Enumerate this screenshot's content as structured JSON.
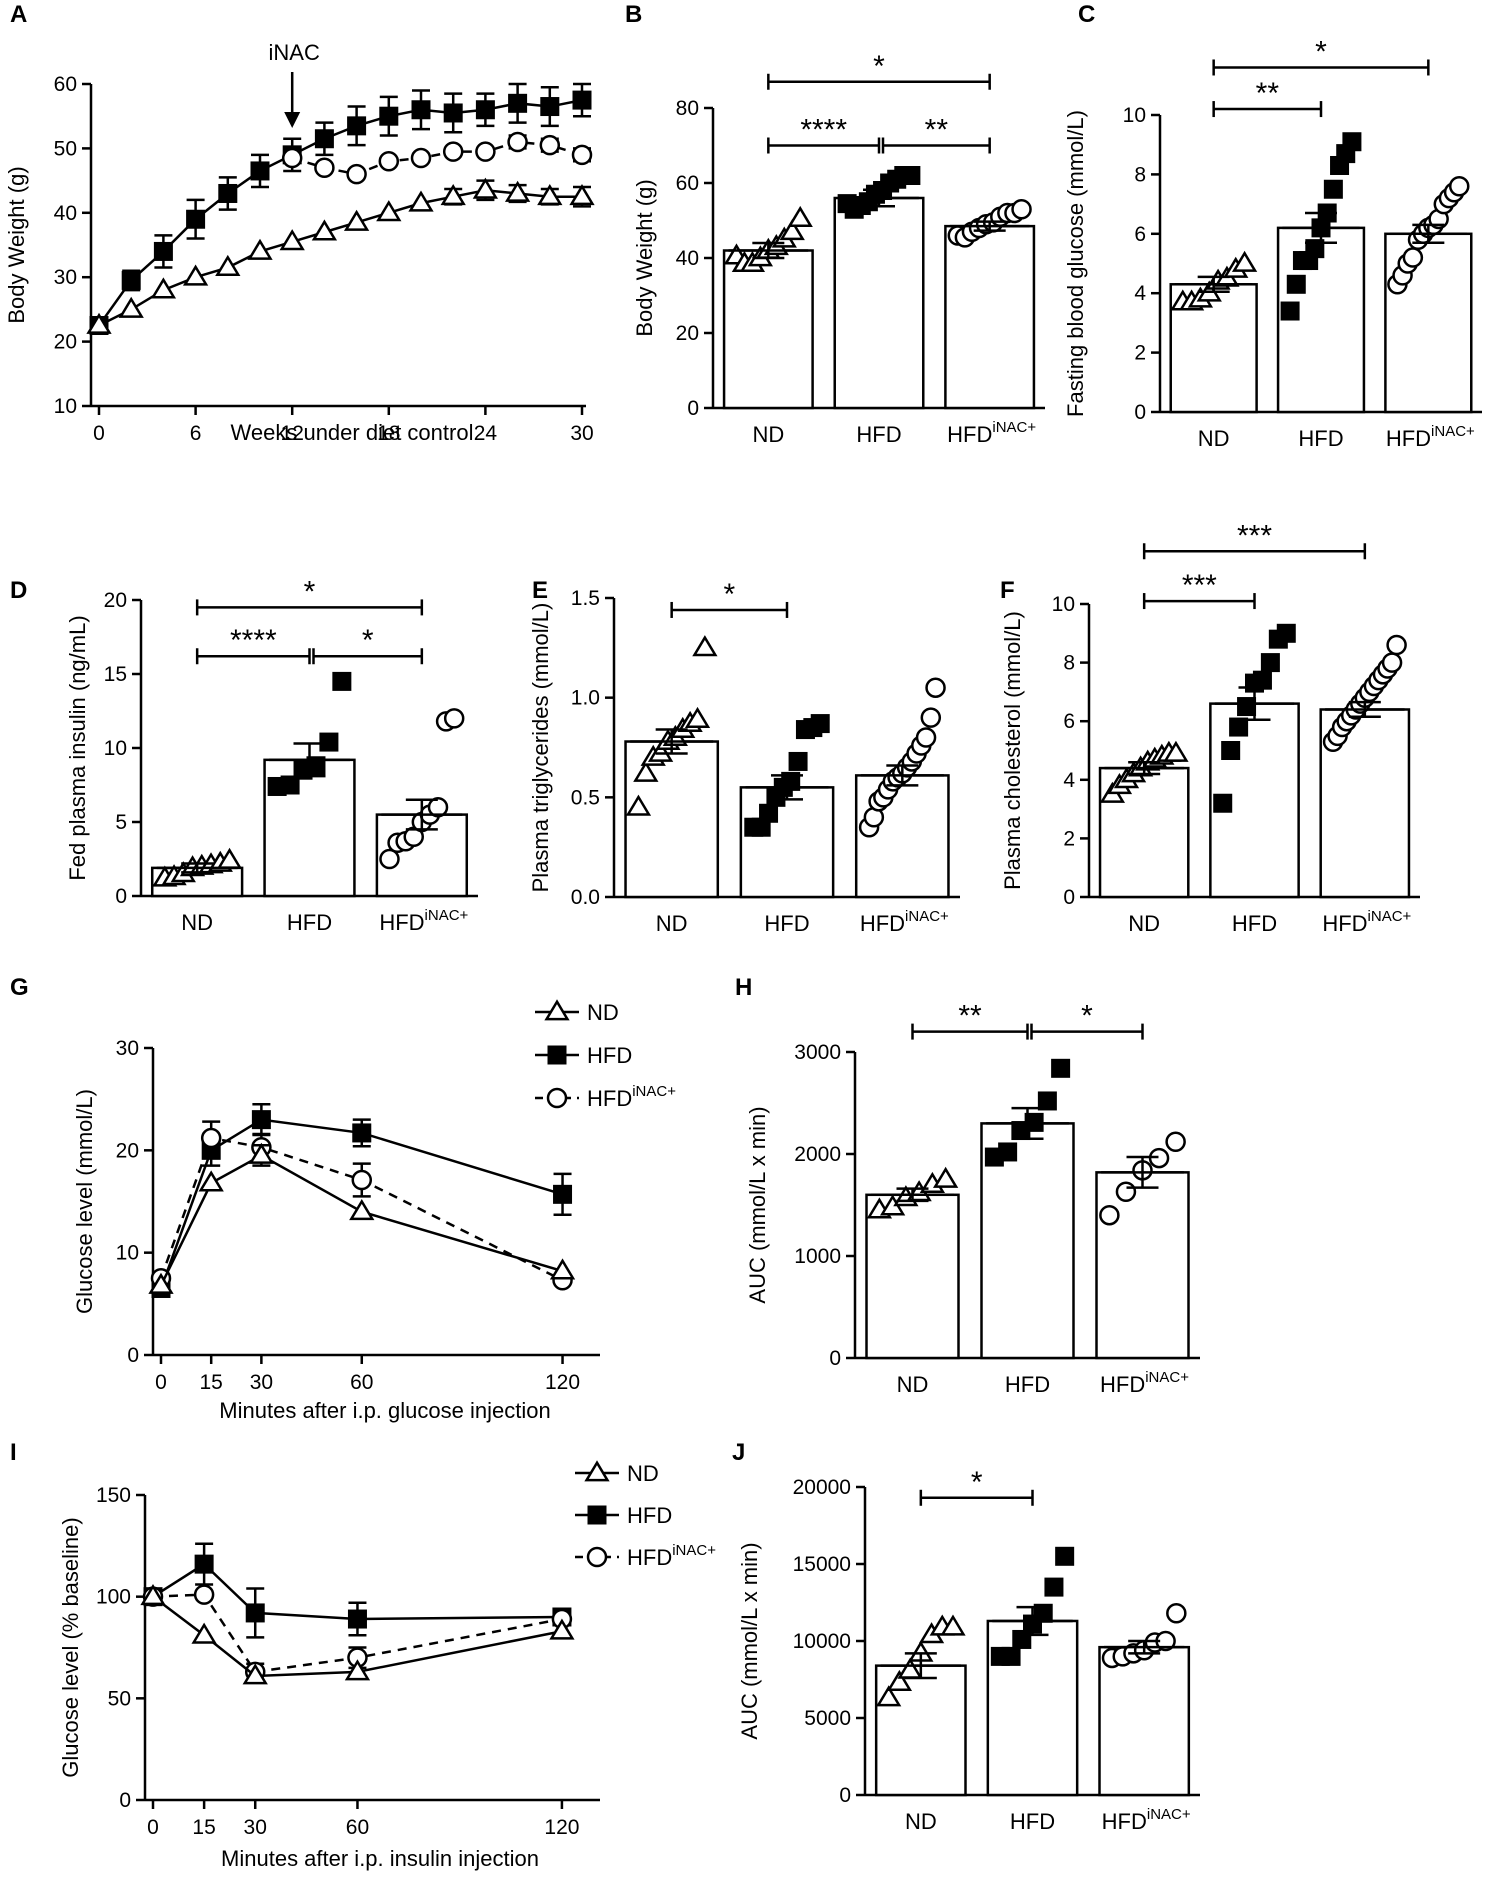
{
  "colors": {
    "ink": "#000000",
    "paper": "#ffffff"
  },
  "chart_data": [
    {
      "id": "A",
      "letter": "A",
      "type": "line",
      "xlabel": "Weeks under diet control",
      "ylabel": "Body Weight (g)",
      "xlim": [
        0,
        30
      ],
      "ylim": [
        10,
        60
      ],
      "xticks": [
        0,
        6,
        12,
        18,
        24,
        30
      ],
      "yticks": [
        10,
        20,
        30,
        40,
        50,
        60
      ],
      "annotation": "iNAC",
      "annotation_x": 12,
      "series": [
        {
          "name": "HFD",
          "marker": "square",
          "dash": false,
          "x": [
            0,
            2,
            4,
            6,
            8,
            10,
            12,
            14,
            16,
            18,
            20,
            22,
            24,
            26,
            28,
            30
          ],
          "y": [
            22.5,
            29.5,
            34,
            39,
            43,
            46.5,
            49,
            51.5,
            53.5,
            55,
            56,
            55.5,
            56,
            57,
            56.5,
            57.5
          ],
          "err": [
            0,
            1.5,
            2.5,
            3,
            2.5,
            2.5,
            2.5,
            2.5,
            3,
            3,
            3,
            3,
            2.5,
            3,
            3,
            2.5
          ]
        },
        {
          "name": "HFDiNAC+",
          "marker": "circle",
          "dash": true,
          "x": [
            12,
            14,
            16,
            18,
            20,
            22,
            24,
            26,
            28,
            30
          ],
          "y": [
            48.5,
            47,
            46,
            48,
            48.5,
            49.5,
            49.5,
            51,
            50.5,
            49
          ],
          "err": [
            0,
            0,
            0,
            0,
            0,
            0,
            0,
            1,
            1,
            1
          ]
        },
        {
          "name": "ND",
          "marker": "triangle",
          "dash": false,
          "x": [
            0,
            2,
            4,
            6,
            8,
            10,
            12,
            14,
            16,
            18,
            20,
            22,
            24,
            26,
            28,
            30
          ],
          "y": [
            22.5,
            25,
            28,
            30,
            31.5,
            34,
            35.5,
            37,
            38.5,
            40,
            41.5,
            42.5,
            43.5,
            43,
            42.5,
            42.5
          ],
          "err": [
            0,
            0,
            0,
            0,
            0,
            0,
            0,
            0,
            0,
            0,
            0,
            1.2,
            1.5,
            1.3,
            1.2,
            1.5
          ]
        }
      ]
    },
    {
      "id": "B",
      "letter": "B",
      "type": "bar",
      "ylabel": "Body Weight (g)",
      "ylim": [
        0,
        80
      ],
      "yticks": [
        0,
        20,
        40,
        60,
        80
      ],
      "categories": [
        "ND",
        "HFD",
        "HFD"
      ],
      "category_sup": [
        "",
        "",
        "iNAC+"
      ],
      "values": [
        42,
        56,
        48.5
      ],
      "sem": [
        2,
        2.2,
        1.2
      ],
      "markers": [
        "triangle",
        "square",
        "circle"
      ],
      "points": [
        [
          40.5,
          38.5,
          38.5,
          40,
          42,
          43,
          45,
          47,
          50.5
        ],
        [
          54.5,
          53,
          54,
          55,
          57,
          58,
          60,
          61,
          62,
          62
        ],
        [
          46,
          45.5,
          47,
          48,
          49,
          49.5,
          51,
          52,
          52,
          53
        ]
      ],
      "significance": [
        {
          "from": 0,
          "to": 2,
          "label": "*",
          "y": 87
        },
        {
          "from": 0,
          "to": 1,
          "label": "****",
          "y": 70
        },
        {
          "from": 1,
          "to": 2,
          "label": "**",
          "y": 70
        }
      ]
    },
    {
      "id": "C",
      "letter": "C",
      "type": "bar",
      "ylabel": "Fasting blood glucose (mmol/L)",
      "ylim": [
        0,
        10
      ],
      "yticks": [
        0,
        2,
        4,
        6,
        8,
        10
      ],
      "categories": [
        "ND",
        "HFD",
        "HFD"
      ],
      "category_sup": [
        "",
        "",
        "iNAC+"
      ],
      "values": [
        4.3,
        6.2,
        6.0
      ],
      "sem": [
        0.25,
        0.5,
        0.3
      ],
      "markers": [
        "triangle",
        "square",
        "circle"
      ],
      "points": [
        [
          3.7,
          3.7,
          3.8,
          4.0,
          4.4,
          4.5,
          4.8,
          5.0
        ],
        [
          3.4,
          4.3,
          5.1,
          5.1,
          5.5,
          6.2,
          6.7,
          7.5,
          8.3,
          8.7,
          9.1
        ],
        [
          4.3,
          4.6,
          5.0,
          5.2,
          5.8,
          6.0,
          6.2,
          6.3,
          6.5,
          7.0,
          7.2,
          7.4,
          7.6
        ]
      ],
      "significance": [
        {
          "from": 0,
          "to": 2,
          "label": "*",
          "y": 11.6
        },
        {
          "from": 0,
          "to": 1,
          "label": "**",
          "y": 10.2
        }
      ]
    },
    {
      "id": "D",
      "letter": "D",
      "type": "bar",
      "ylabel": "Fed plasma insulin (ng/mL)",
      "ylim": [
        0,
        20
      ],
      "yticks": [
        0,
        5,
        10,
        15,
        20
      ],
      "categories": [
        "ND",
        "HFD",
        "HFD"
      ],
      "category_sup": [
        "",
        "",
        "iNAC+"
      ],
      "values": [
        1.9,
        9.2,
        5.5
      ],
      "sem": [
        0.3,
        1.1,
        1.0
      ],
      "markers": [
        "triangle",
        "square",
        "circle"
      ],
      "points": [
        [
          1.2,
          1.3,
          1.5,
          1.9,
          2.0,
          2.1,
          2.2,
          2.4
        ],
        [
          7.4,
          7.5,
          8.5,
          8.8,
          10.4,
          14.5
        ],
        [
          2.5,
          3.6,
          3.7,
          4.0,
          5.0,
          5.5,
          6.0,
          11.8,
          12.0
        ]
      ],
      "significance": [
        {
          "from": 0,
          "to": 2,
          "label": "*",
          "y": 19.5
        },
        {
          "from": 0,
          "to": 1,
          "label": "****",
          "y": 16.2
        },
        {
          "from": 1,
          "to": 2,
          "label": "*",
          "y": 16.2
        }
      ]
    },
    {
      "id": "E",
      "letter": "E",
      "type": "bar",
      "ylabel": "Plasma triglycerides (mmol/L)",
      "ylim": [
        0,
        1.5
      ],
      "yticks": [
        0,
        0.5,
        1.0,
        1.5
      ],
      "tick_labels": [
        "0.0",
        "0.5",
        "1.0",
        "1.5"
      ],
      "categories": [
        "ND",
        "HFD",
        "HFD"
      ],
      "category_sup": [
        "",
        "",
        "iNAC+"
      ],
      "values": [
        0.78,
        0.55,
        0.61
      ],
      "sem": [
        0.06,
        0.06,
        0.05
      ],
      "markers": [
        "triangle",
        "square",
        "circle"
      ],
      "points": [
        [
          0.45,
          0.62,
          0.7,
          0.72,
          0.78,
          0.8,
          0.84,
          0.87,
          0.89,
          1.25
        ],
        [
          0.35,
          0.35,
          0.42,
          0.5,
          0.55,
          0.58,
          0.68,
          0.84,
          0.85,
          0.87
        ],
        [
          0.35,
          0.4,
          0.48,
          0.5,
          0.54,
          0.58,
          0.6,
          0.62,
          0.65,
          0.68,
          0.72,
          0.76,
          0.8,
          0.9,
          1.05
        ]
      ],
      "significance": [
        {
          "from": 0,
          "to": 1,
          "label": "*",
          "y": 1.44
        }
      ]
    },
    {
      "id": "F",
      "letter": "F",
      "type": "bar",
      "ylabel": "Plasma cholesterol (mmol/L)",
      "ylim": [
        0,
        10
      ],
      "yticks": [
        0,
        2,
        4,
        6,
        8,
        10
      ],
      "categories": [
        "ND",
        "HFD",
        "HFD"
      ],
      "category_sup": [
        "",
        "",
        "iNAC+"
      ],
      "values": [
        4.4,
        6.6,
        6.4
      ],
      "sem": [
        0.2,
        0.55,
        0.25
      ],
      "markers": [
        "triangle",
        "square",
        "circle"
      ],
      "points": [
        [
          3.5,
          3.8,
          4.0,
          4.2,
          4.4,
          4.6,
          4.7,
          4.8,
          4.9,
          4.9
        ],
        [
          3.2,
          5.0,
          5.8,
          6.5,
          7.3,
          7.4,
          8.0,
          8.8,
          9.0
        ],
        [
          5.3,
          5.5,
          5.8,
          6.0,
          6.2,
          6.4,
          6.6,
          6.8,
          7.0,
          7.2,
          7.4,
          7.6,
          7.8,
          8.0,
          8.6
        ]
      ],
      "significance": [
        {
          "from": 0,
          "to": 2,
          "label": "***",
          "y": 11.8
        },
        {
          "from": 0,
          "to": 1,
          "label": "***",
          "y": 10.1
        }
      ]
    },
    {
      "id": "G",
      "letter": "G",
      "type": "line",
      "xlabel": "Minutes after i.p. glucose injection",
      "ylabel": "Glucose level (mmol/L)",
      "xlim": [
        0,
        130
      ],
      "ylim": [
        0,
        30
      ],
      "xticks": [
        0,
        15,
        30,
        60,
        120
      ],
      "yticks": [
        0,
        10,
        20,
        30
      ],
      "legend": [
        {
          "label": "ND",
          "sup": "",
          "marker": "triangle",
          "dash": false
        },
        {
          "label": "HFD",
          "sup": "",
          "marker": "square",
          "dash": false
        },
        {
          "label": "HFD",
          "sup": "iNAC+",
          "marker": "circle",
          "dash": true
        }
      ],
      "series": [
        {
          "name": "HFD",
          "marker": "square",
          "dash": false,
          "x": [
            0,
            15,
            30,
            60,
            120
          ],
          "y": [
            6.5,
            20,
            23,
            21.7,
            15.7
          ],
          "err": [
            0,
            1.5,
            1.5,
            1.3,
            2
          ]
        },
        {
          "name": "HFDiNAC+",
          "marker": "circle",
          "dash": true,
          "x": [
            0,
            15,
            30,
            60,
            120
          ],
          "y": [
            7.5,
            21.2,
            20.3,
            17.1,
            7.3
          ],
          "err": [
            0,
            1.6,
            1.3,
            1.6,
            0
          ]
        },
        {
          "name": "ND",
          "marker": "triangle",
          "dash": false,
          "x": [
            0,
            15,
            30,
            60,
            120
          ],
          "y": [
            6.8,
            16.8,
            19.5,
            14,
            8.2
          ],
          "err": [
            0,
            0,
            1,
            0,
            0
          ]
        }
      ]
    },
    {
      "id": "H",
      "letter": "H",
      "type": "bar",
      "ylabel": "AUC (mmol/L x min)",
      "ylim": [
        0,
        3000
      ],
      "yticks": [
        0,
        1000,
        2000,
        3000
      ],
      "categories": [
        "ND",
        "HFD",
        "HFD"
      ],
      "category_sup": [
        "",
        "",
        "iNAC+"
      ],
      "values": [
        1600,
        2300,
        1820
      ],
      "sem": [
        60,
        150,
        150
      ],
      "markers": [
        "triangle",
        "square",
        "circle"
      ],
      "points": [
        [
          1450,
          1480,
          1570,
          1620,
          1700,
          1750
        ],
        [
          1970,
          2020,
          2230,
          2310,
          2520,
          2840
        ],
        [
          1400,
          1630,
          1840,
          1960,
          2120
        ]
      ],
      "significance": [
        {
          "from": 0,
          "to": 1,
          "label": "**",
          "y": 3200
        },
        {
          "from": 1,
          "to": 2,
          "label": "*",
          "y": 3200
        }
      ]
    },
    {
      "id": "I",
      "letter": "I",
      "type": "line",
      "xlabel": "Minutes after i.p. insulin injection",
      "ylabel": "Glucose level (% baseline)",
      "xlim": [
        0,
        130
      ],
      "ylim": [
        0,
        150
      ],
      "xticks": [
        0,
        15,
        30,
        60,
        120
      ],
      "yticks": [
        0,
        50,
        100,
        150
      ],
      "legend": [
        {
          "label": "ND",
          "sup": "",
          "marker": "triangle",
          "dash": false
        },
        {
          "label": "HFD",
          "sup": "",
          "marker": "square",
          "dash": false
        },
        {
          "label": "HFD",
          "sup": "iNAC+",
          "marker": "circle",
          "dash": true
        }
      ],
      "series": [
        {
          "name": "HFD",
          "marker": "square",
          "dash": false,
          "x": [
            0,
            15,
            30,
            60,
            120
          ],
          "y": [
            100,
            116,
            92,
            89,
            90
          ],
          "err": [
            0,
            10,
            12,
            8,
            4
          ]
        },
        {
          "name": "HFDiNAC+",
          "marker": "circle",
          "dash": true,
          "x": [
            0,
            15,
            30,
            60,
            120
          ],
          "y": [
            100,
            101,
            63,
            70,
            89
          ],
          "err": [
            0,
            0,
            4,
            5,
            0
          ]
        },
        {
          "name": "ND",
          "marker": "triangle",
          "dash": false,
          "x": [
            0,
            15,
            30,
            60,
            120
          ],
          "y": [
            100,
            81,
            61,
            63,
            83
          ],
          "err": [
            0,
            0,
            0,
            0,
            0
          ]
        }
      ]
    },
    {
      "id": "J",
      "letter": "J",
      "type": "bar",
      "ylabel": "AUC (mmol/L x min)",
      "ylim": [
        0,
        20000
      ],
      "yticks": [
        0,
        5000,
        10000,
        15000,
        20000
      ],
      "categories": [
        "ND",
        "HFD",
        "HFD"
      ],
      "category_sup": [
        "",
        "",
        "iNAC+"
      ],
      "values": [
        8400,
        11300,
        9600
      ],
      "sem": [
        800,
        900,
        400
      ],
      "markers": [
        "triangle",
        "square",
        "circle"
      ],
      "points": [
        [
          6300,
          7300,
          8100,
          9200,
          10400,
          10900,
          10900
        ],
        [
          9000,
          9000,
          10100,
          11100,
          11800,
          13500,
          15500
        ],
        [
          8900,
          9000,
          9200,
          9400,
          9900,
          10000,
          11800
        ]
      ],
      "significance": [
        {
          "from": 0,
          "to": 1,
          "label": "*",
          "y": 19300
        }
      ]
    }
  ]
}
